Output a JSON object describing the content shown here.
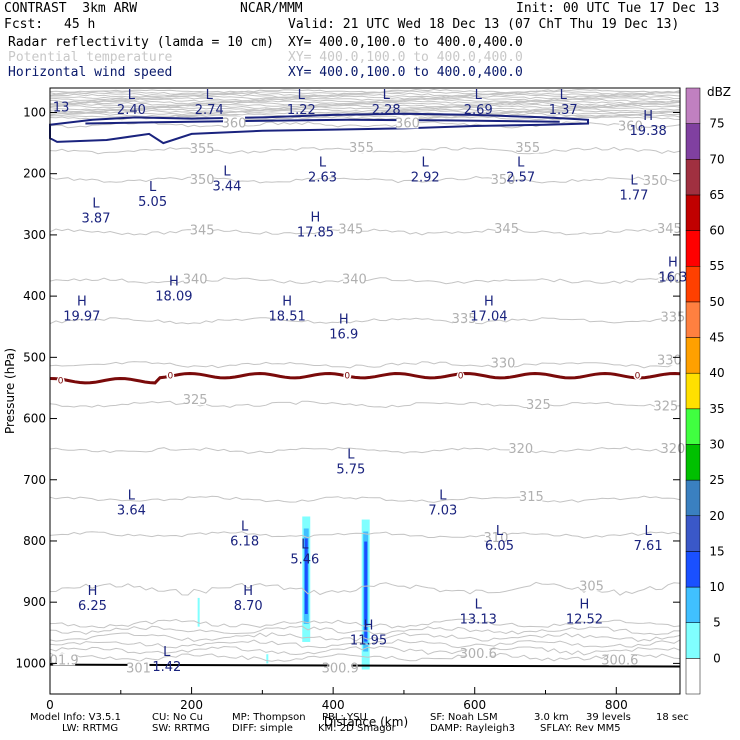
{
  "header": {
    "model": "CONTRAST  3km ARW",
    "org": "NCAR/MMM",
    "init": "Init: 00 UTC Tue 17 Dec 13",
    "fcst_label": "Fcst:",
    "fcst_value": "45 h",
    "valid": "Valid: 21 UTC Wed 18 Dec 13 (07 ChT Thu 19 Dec 13)",
    "fields": [
      {
        "name": "Radar reflectivity (lamda = 10 cm)",
        "xy": "XY= 400.0,100.0 to 400.0,400.0"
      },
      {
        "name": "Potential temperature",
        "xy": "XY= 400.0,100.0 to 400.0,400.0"
      },
      {
        "name": "Horizontal wind speed",
        "xy": "XY= 400.0,100.0 to 400.0,400.0"
      }
    ]
  },
  "footer": {
    "line1": [
      "Model Info: V3.5.1",
      "CU: No Cu",
      "MP: Thompson",
      "PBL: YSU",
      "SF: Noah LSM",
      "3.0 km",
      "39 levels",
      "18 sec"
    ],
    "line2": [
      "LW: RRTMG",
      "SW: RRTMG",
      "DIFF: simple",
      "KM: 2D Smagor",
      "DAMP: Rayleigh3",
      "SFLAY: Rev MM5"
    ]
  },
  "colors": {
    "theta": "#c4c4c4",
    "wind": "#1a237e",
    "freezing": "#7a0a0a",
    "ground": "#000000",
    "label": "#1a237e"
  },
  "chart_data": {
    "type": "cross-section",
    "xlabel": "Distance (km)",
    "ylabel": "Pressure (hPa)",
    "xlim": [
      0,
      890
    ],
    "ylim_hpa": [
      1050,
      60
    ],
    "x_ticks": [
      0,
      200,
      400,
      600,
      800
    ],
    "y_ticks": [
      100,
      200,
      300,
      400,
      500,
      600,
      700,
      800,
      900,
      1000
    ],
    "colorbar": {
      "unit": "dBZ",
      "levels": [
        0,
        5,
        10,
        15,
        20,
        25,
        30,
        35,
        40,
        45,
        50,
        55,
        60,
        65,
        70,
        75
      ],
      "colors": [
        "#ffffff",
        "#80ffff",
        "#40c0ff",
        "#1a50ff",
        "#3a58c8",
        "#3a80c0",
        "#00c000",
        "#40ff40",
        "#ffe000",
        "#ffa000",
        "#ff8040",
        "#ff4000",
        "#ff0000",
        "#c00000",
        "#a03040",
        "#8040a0",
        "#c080c0"
      ]
    },
    "theta_levels": [
      {
        "value": "305",
        "p": 878
      },
      {
        "value": "310",
        "p": 790
      },
      {
        "value": "315",
        "p": 732
      },
      {
        "value": "320",
        "p": 652
      },
      {
        "value": "325",
        "p": 577
      },
      {
        "value": "330",
        "p": 512
      },
      {
        "value": "335",
        "p": 440
      },
      {
        "value": "340",
        "p": 375
      },
      {
        "value": "345",
        "p": 295
      },
      {
        "value": "350",
        "p": 210
      },
      {
        "value": "355",
        "p": 162
      },
      {
        "value": "360",
        "p": 120
      }
    ],
    "theta_labels": [
      {
        "text": "305",
        "x": 765,
        "p": 874
      },
      {
        "text": "310",
        "x": 630,
        "p": 795
      },
      {
        "text": "315",
        "x": 680,
        "p": 728
      },
      {
        "text": "320",
        "x": 880,
        "p": 650
      },
      {
        "text": "320",
        "x": 665,
        "p": 650
      },
      {
        "text": "325",
        "x": 205,
        "p": 570
      },
      {
        "text": "325",
        "x": 690,
        "p": 578
      },
      {
        "text": "325",
        "x": 870,
        "p": 580
      },
      {
        "text": "330",
        "x": 640,
        "p": 510
      },
      {
        "text": "330",
        "x": 875,
        "p": 505
      },
      {
        "text": "335",
        "x": 585,
        "p": 437
      },
      {
        "text": "335",
        "x": 880,
        "p": 435
      },
      {
        "text": "340",
        "x": 205,
        "p": 373
      },
      {
        "text": "340",
        "x": 430,
        "p": 373
      },
      {
        "text": "340",
        "x": 875,
        "p": 372
      },
      {
        "text": "345",
        "x": 215,
        "p": 293
      },
      {
        "text": "345",
        "x": 425,
        "p": 291
      },
      {
        "text": "345",
        "x": 645,
        "p": 290
      },
      {
        "text": "345",
        "x": 875,
        "p": 290
      },
      {
        "text": "350",
        "x": 215,
        "p": 210
      },
      {
        "text": "350",
        "x": 640,
        "p": 210
      },
      {
        "text": "350",
        "x": 855,
        "p": 212
      },
      {
        "text": "355",
        "x": 215,
        "p": 160
      },
      {
        "text": "355",
        "x": 440,
        "p": 158
      },
      {
        "text": "355",
        "x": 675,
        "p": 158
      },
      {
        "text": "360",
        "x": 260,
        "p": 118
      },
      {
        "text": "360",
        "x": 505,
        "p": 118
      },
      {
        "text": "360",
        "x": 820,
        "p": 123
      },
      {
        "text": "01.9",
        "x": 20,
        "p": 995
      },
      {
        "text": "301",
        "x": 125,
        "p": 1008
      },
      {
        "text": "300.6",
        "x": 605,
        "p": 985
      },
      {
        "text": "300.6",
        "x": 805,
        "p": 995
      },
      {
        "text": "300.9",
        "x": 410,
        "p": 1008
      }
    ],
    "freezing_level_label": "0",
    "freezing_level_p": 530,
    "wind_contour_label": "13",
    "highs_lows": [
      {
        "type": "L",
        "value": "2.40",
        "x": 115,
        "p": 78
      },
      {
        "type": "L",
        "value": "2.74",
        "x": 225,
        "p": 78
      },
      {
        "type": "L",
        "value": "1.22",
        "x": 355,
        "p": 78
      },
      {
        "type": "L",
        "value": "2.28",
        "x": 475,
        "p": 78
      },
      {
        "type": "L",
        "value": "2.69",
        "x": 605,
        "p": 78
      },
      {
        "type": "L",
        "value": "1.37",
        "x": 725,
        "p": 78
      },
      {
        "type": "H",
        "value": "19.38",
        "x": 845,
        "p": 112
      },
      {
        "type": "L",
        "value": "2.63",
        "x": 385,
        "p": 188
      },
      {
        "type": "L",
        "value": "2.92",
        "x": 530,
        "p": 188
      },
      {
        "type": "L",
        "value": "2.57",
        "x": 665,
        "p": 188
      },
      {
        "type": "L",
        "value": "3.44",
        "x": 250,
        "p": 203
      },
      {
        "type": "L",
        "value": "1.77",
        "x": 825,
        "p": 218
      },
      {
        "type": "L",
        "value": "5.05",
        "x": 145,
        "p": 228
      },
      {
        "type": "L",
        "value": "3.87",
        "x": 65,
        "p": 255
      },
      {
        "type": "H",
        "value": "17.85",
        "x": 375,
        "p": 278
      },
      {
        "type": "H",
        "value": "16.3",
        "x": 880,
        "p": 352
      },
      {
        "type": "H",
        "value": "18.09",
        "x": 175,
        "p": 383
      },
      {
        "type": "H",
        "value": "19.97",
        "x": 45,
        "p": 415
      },
      {
        "type": "H",
        "value": "18.51",
        "x": 335,
        "p": 415
      },
      {
        "type": "H",
        "value": "17.04",
        "x": 620,
        "p": 415
      },
      {
        "type": "H",
        "value": "16.9",
        "x": 415,
        "p": 445
      },
      {
        "type": "L",
        "value": "5.75",
        "x": 425,
        "p": 665
      },
      {
        "type": "L",
        "value": "3.64",
        "x": 115,
        "p": 732
      },
      {
        "type": "L",
        "value": "7.03",
        "x": 555,
        "p": 732
      },
      {
        "type": "L",
        "value": "6.18",
        "x": 275,
        "p": 783
      },
      {
        "type": "L",
        "value": "6.05",
        "x": 635,
        "p": 790
      },
      {
        "type": "L",
        "value": "7.61",
        "x": 845,
        "p": 790
      },
      {
        "type": "L",
        "value": "5.46",
        "x": 360,
        "p": 812
      },
      {
        "type": "H",
        "value": "6.25",
        "x": 60,
        "p": 888
      },
      {
        "type": "H",
        "value": "8.70",
        "x": 280,
        "p": 888
      },
      {
        "type": "L",
        "value": "13.13",
        "x": 605,
        "p": 910
      },
      {
        "type": "H",
        "value": "12.52",
        "x": 755,
        "p": 910
      },
      {
        "type": "H",
        "value": "11.95",
        "x": 450,
        "p": 945
      },
      {
        "type": "L",
        "value": "1.42",
        "x": 165,
        "p": 988
      }
    ],
    "reflectivity_cells": [
      {
        "x": 362,
        "p_top": 760,
        "p_bottom": 965,
        "dbz_core": 18
      },
      {
        "x": 446,
        "p_top": 765,
        "p_bottom": 1010,
        "dbz_core": 18
      }
    ]
  }
}
